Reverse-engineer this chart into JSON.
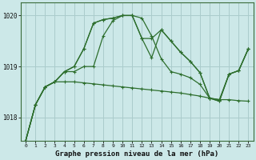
{
  "title": "Graphe pression niveau de la mer (hPa)",
  "bg_color": "#cce8e8",
  "grid_color": "#aacccc",
  "line_color": "#2d6e2d",
  "hours": [
    0,
    1,
    2,
    3,
    4,
    5,
    6,
    7,
    8,
    9,
    10,
    11,
    12,
    13,
    14,
    15,
    16,
    17,
    18,
    19,
    20,
    21,
    22,
    23
  ],
  "s1": [
    1017.55,
    1018.25,
    1018.6,
    1018.7,
    1018.7,
    1018.7,
    1018.68,
    1018.66,
    1018.64,
    1018.62,
    1018.6,
    1018.58,
    1018.56,
    1018.54,
    1018.52,
    1018.5,
    1018.48,
    1018.45,
    1018.42,
    1018.38,
    1018.35,
    1018.35,
    1018.33,
    1018.32
  ],
  "s2": [
    1017.55,
    1018.25,
    1018.6,
    1018.7,
    1018.9,
    1018.9,
    1019.0,
    1019.0,
    1019.6,
    1019.9,
    1020.0,
    1020.0,
    1019.95,
    1019.6,
    1019.15,
    1018.9,
    1018.85,
    1018.78,
    1018.65,
    1018.38,
    1018.35,
    1018.85,
    1018.92,
    1019.35
  ],
  "s3": [
    1017.55,
    1018.25,
    1018.6,
    1018.7,
    1018.9,
    1019.0,
    1019.35,
    1019.85,
    1019.92,
    1019.95,
    1020.0,
    1020.0,
    1019.55,
    1019.55,
    1019.72,
    1019.5,
    1019.28,
    1019.1,
    1018.88,
    1018.38,
    1018.32,
    1018.85,
    1018.92,
    1019.35
  ],
  "s4": [
    1017.55,
    1018.25,
    1018.6,
    1018.7,
    1018.9,
    1019.0,
    1019.35,
    1019.85,
    1019.92,
    1019.95,
    1020.0,
    1020.0,
    1019.55,
    1019.17,
    1019.72,
    1019.5,
    1019.28,
    1019.1,
    1018.88,
    1018.38,
    1018.32,
    1018.85,
    1018.92,
    1019.35
  ],
  "ylim_min": 1017.55,
  "ylim_max": 1020.25,
  "yticks": [
    1018,
    1019,
    1020
  ],
  "figsize": [
    3.2,
    2.0
  ],
  "dpi": 100
}
